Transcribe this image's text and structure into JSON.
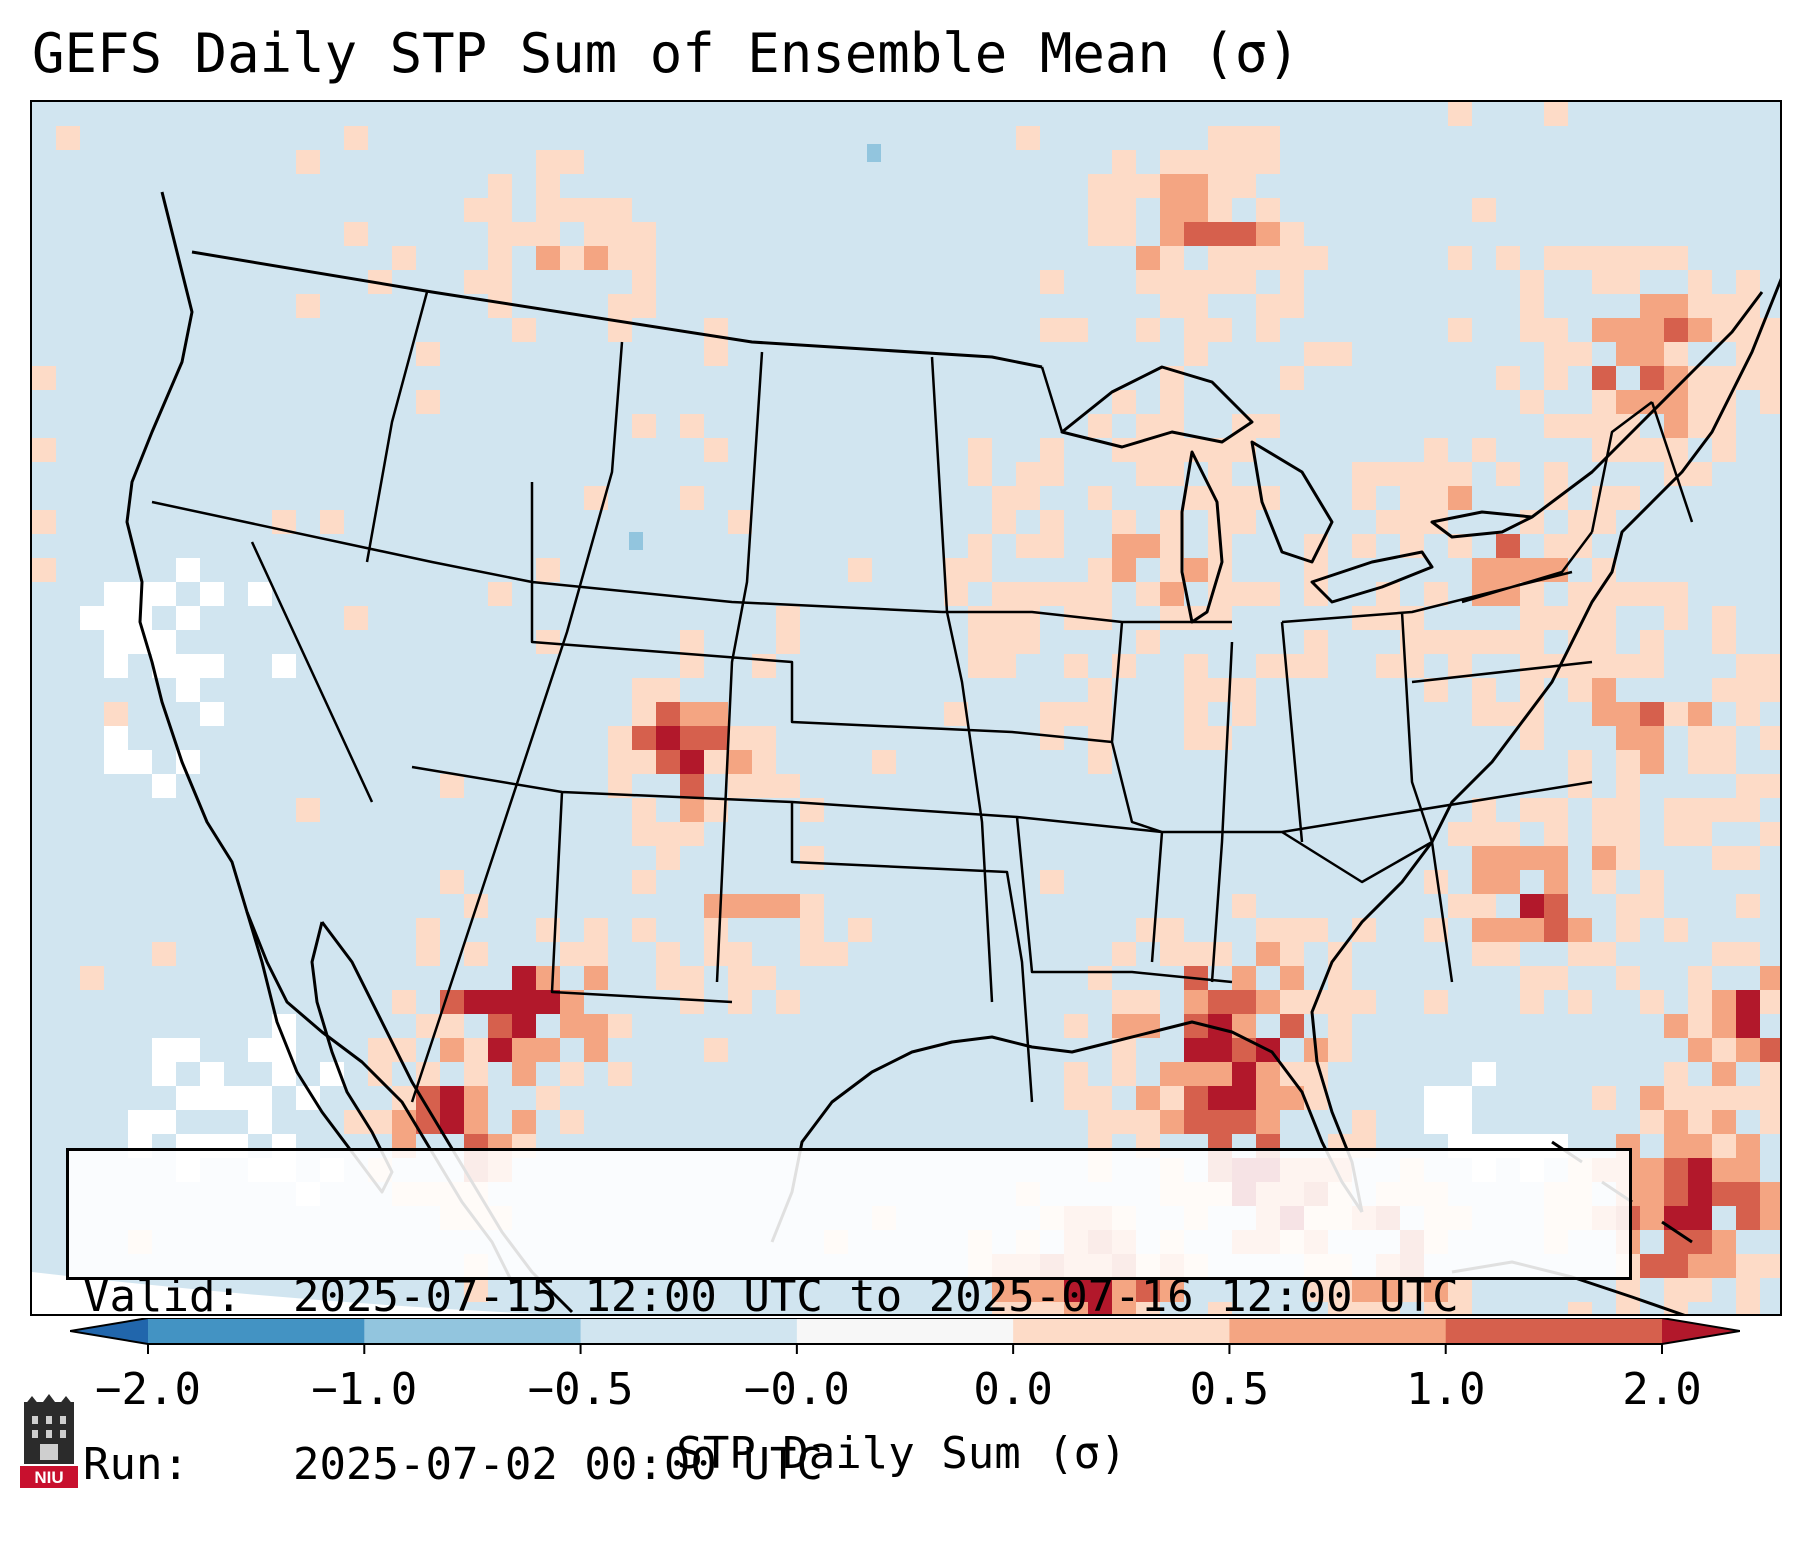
{
  "title": "GEFS Daily STP Sum of Ensemble Mean (σ)",
  "info": {
    "valid_label": "Valid:",
    "valid_value": "2025-07-15 12:00 UTC to 2025-07-16 12:00 UTC",
    "run_label": "Run:",
    "run_value": "2025-07-02 00:00 UTC"
  },
  "colorbar": {
    "label": "STP Daily Sum (σ)",
    "ticks": [
      "−2.0",
      "−1.0",
      "−0.5",
      "−0.0",
      "0.0",
      "0.5",
      "1.0",
      "2.0"
    ],
    "bin_colors": [
      "#4393c3",
      "#92c5de",
      "#d1e5f0",
      "#f7f7f7",
      "#fddbc7",
      "#f4a582",
      "#d6604d"
    ],
    "under_color": "#2166ac",
    "over_color": "#b2182b"
  },
  "logo": {
    "text": "NIU"
  },
  "colors": {
    "ocean_land_background": "#d1e5f0",
    "near_zero": "#ffffff",
    "light_positive": "#fddbc7",
    "medium_positive": "#f4a582",
    "strong_positive": "#d6604d",
    "extreme_positive": "#b2182b",
    "light_negative": "#92c5de"
  }
}
